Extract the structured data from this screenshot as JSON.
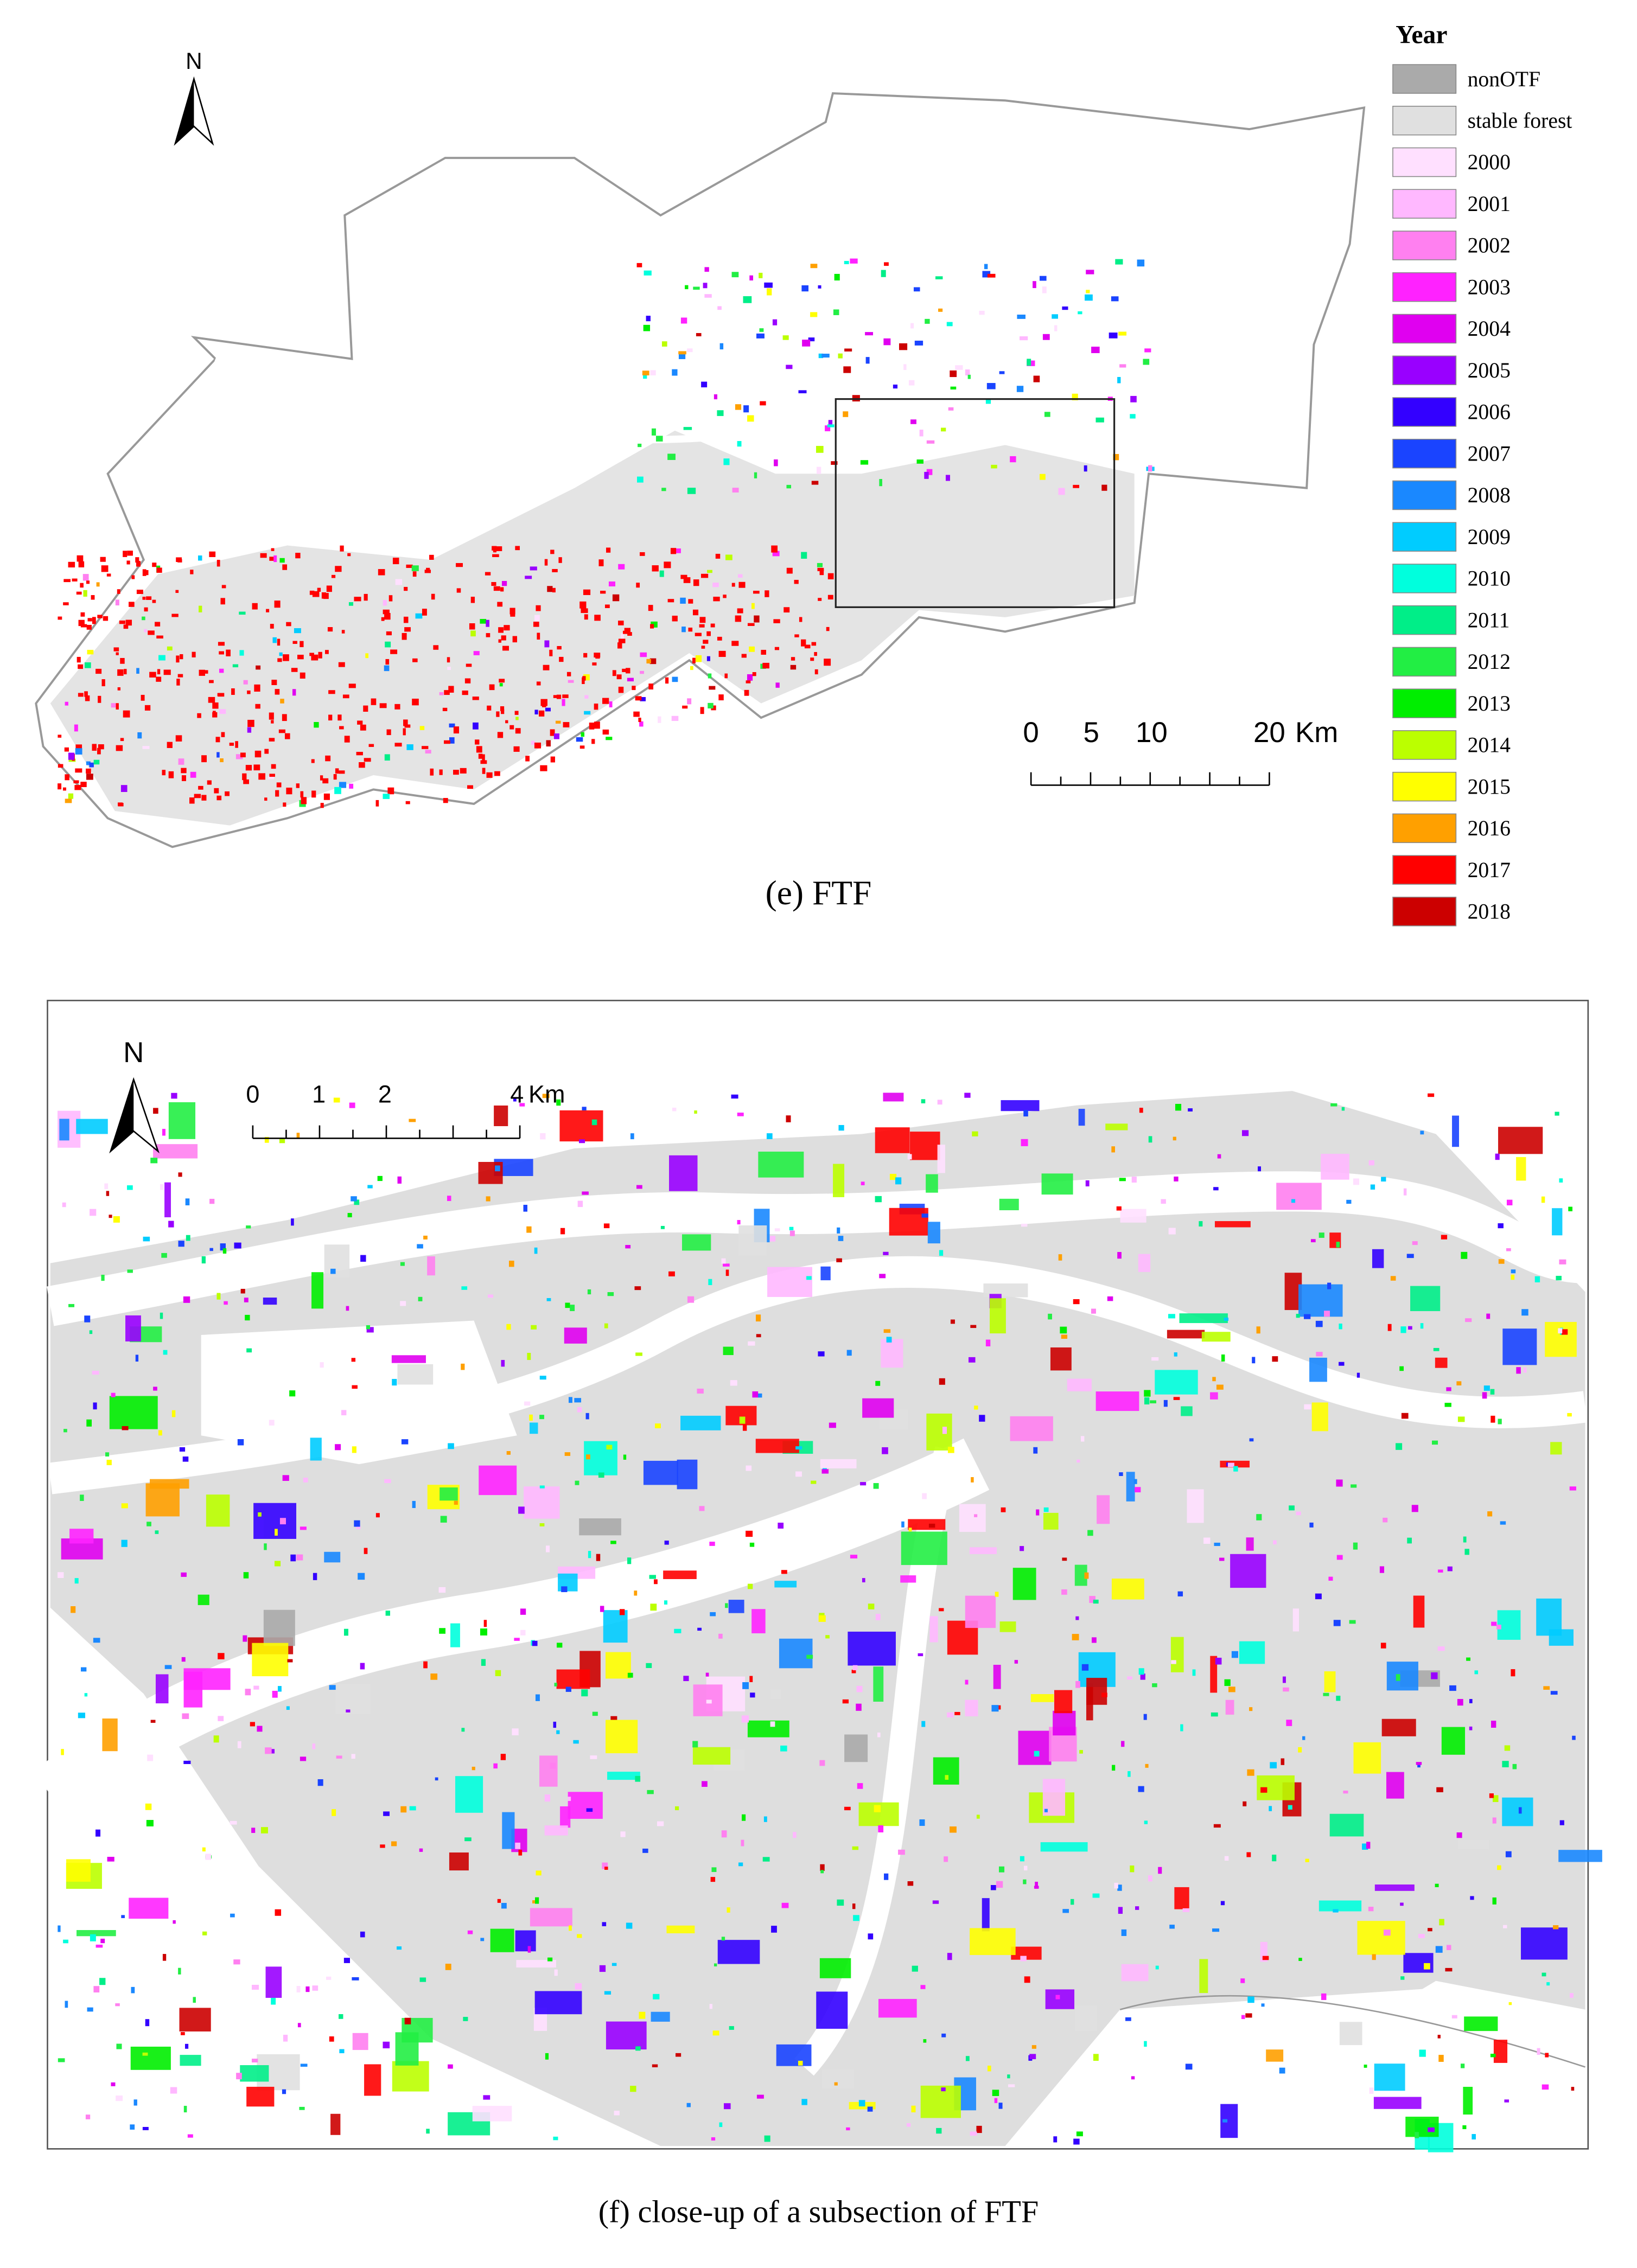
{
  "panel_e": {
    "caption": "(e) FTF",
    "north": "N",
    "scale_bar": {
      "labels": [
        "0",
        "5",
        "10",
        "20"
      ],
      "unit": "Km"
    }
  },
  "panel_f": {
    "caption": "(f)  close-up of a subsection of FTF",
    "north": "N",
    "scale_bar": {
      "labels": [
        "0",
        "1",
        "2",
        "4"
      ],
      "unit": "Km"
    }
  },
  "legend": {
    "title": "Year",
    "items": [
      {
        "label": "nonOTF",
        "color": "#aaaaaa"
      },
      {
        "label": "stable forest",
        "color": "#e0e0e0"
      },
      {
        "label": "2000",
        "color": "#ffe0ff"
      },
      {
        "label": "2001",
        "color": "#ffb8ff"
      },
      {
        "label": "2002",
        "color": "#ff80f0"
      },
      {
        "label": "2003",
        "color": "#ff22ff"
      },
      {
        "label": "2004",
        "color": "#e000f0"
      },
      {
        "label": "2005",
        "color": "#9900ff"
      },
      {
        "label": "2006",
        "color": "#3300ff"
      },
      {
        "label": "2007",
        "color": "#1a44ff"
      },
      {
        "label": "2008",
        "color": "#1a88ff"
      },
      {
        "label": "2009",
        "color": "#00ccff"
      },
      {
        "label": "2010",
        "color": "#00ffdd"
      },
      {
        "label": "2011",
        "color": "#00ee88"
      },
      {
        "label": "2012",
        "color": "#22ee44"
      },
      {
        "label": "2013",
        "color": "#00ee00"
      },
      {
        "label": "2014",
        "color": "#bbff00"
      },
      {
        "label": "2015",
        "color": "#ffff00"
      },
      {
        "label": "2016",
        "color": "#ffa000"
      },
      {
        "label": "2017",
        "color": "#ff0000"
      },
      {
        "label": "2018",
        "color": "#cc0000"
      }
    ]
  }
}
